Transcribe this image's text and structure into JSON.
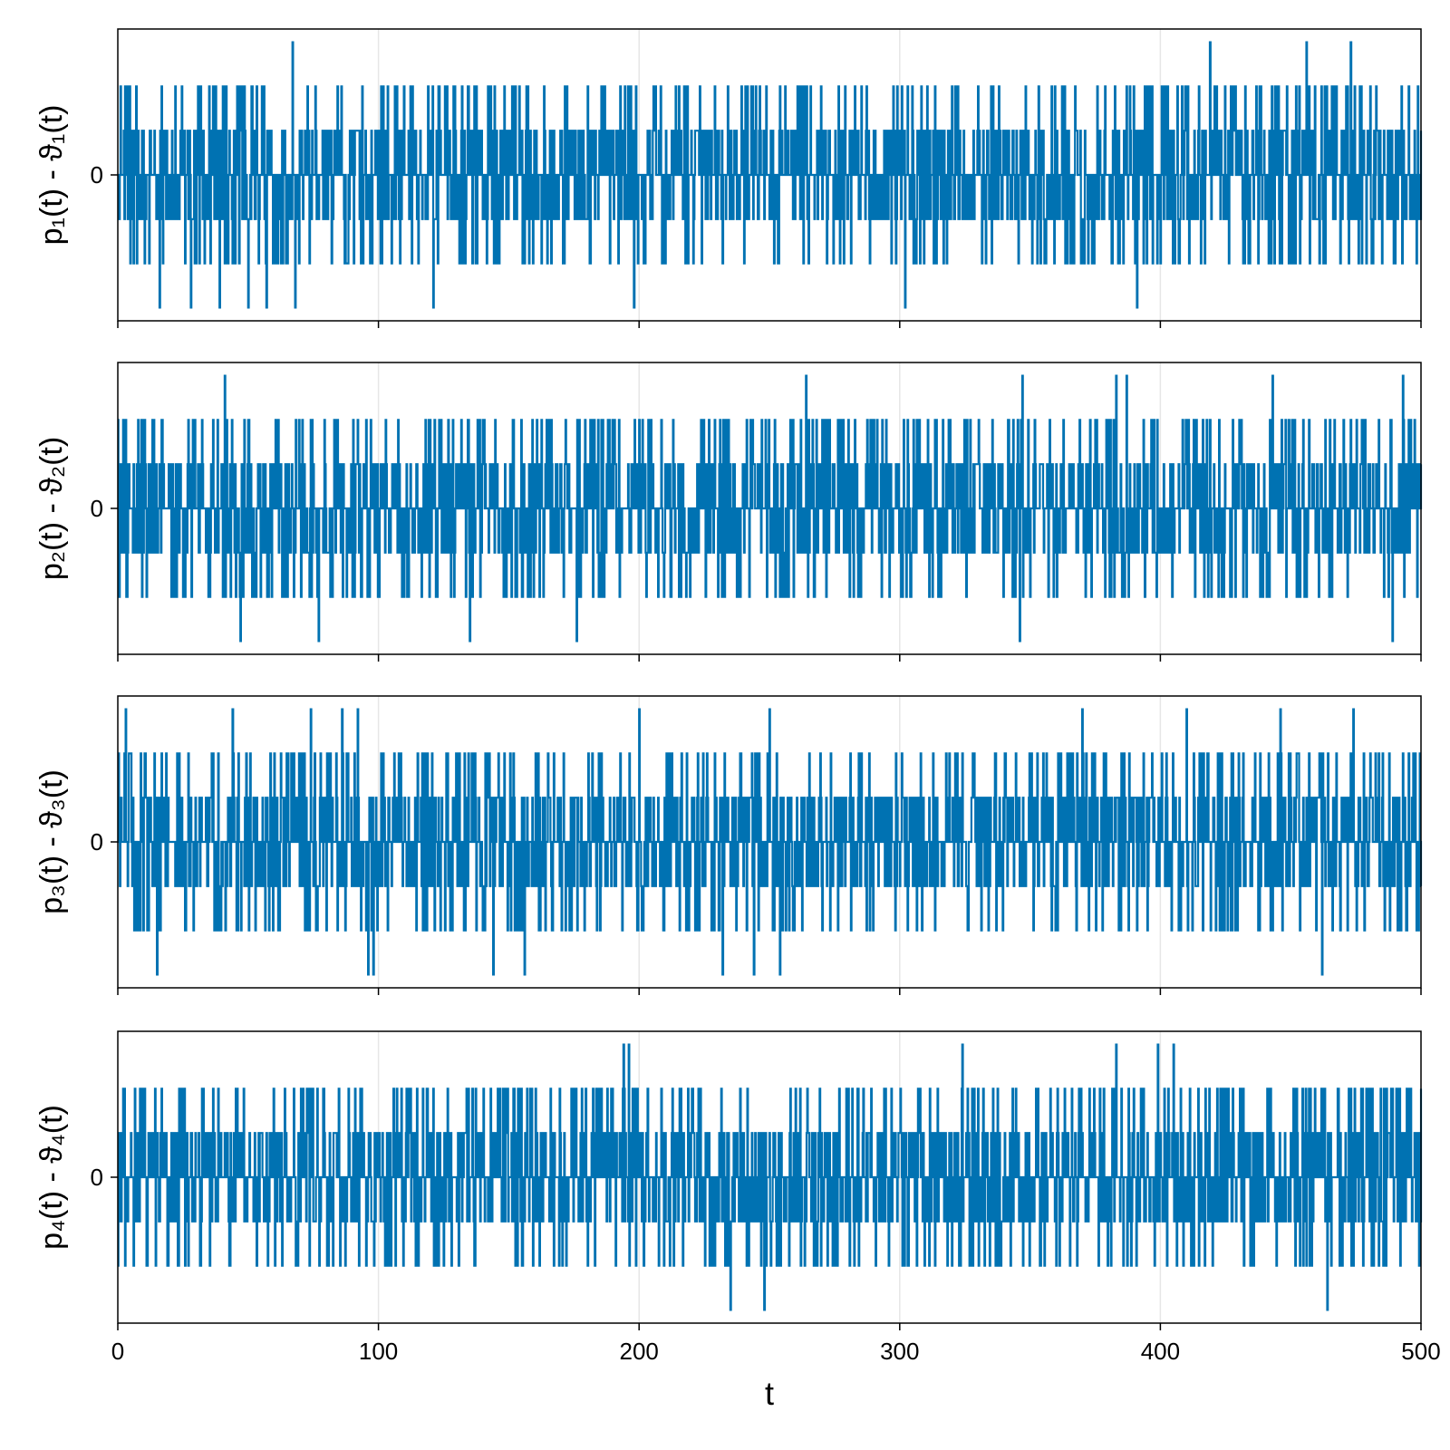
{
  "chart_data": {
    "type": "line",
    "layout": "stacked panels sharing x axis",
    "xlabel": "t",
    "xlim": [
      0,
      500
    ],
    "xticks": [
      0,
      100,
      200,
      300,
      400,
      500
    ],
    "xtick_labels": [
      "0",
      "100",
      "200",
      "300",
      "400",
      "500"
    ],
    "ylim": [
      -3.3,
      3.3
    ],
    "yticks": [
      0
    ],
    "ytick_labels": [
      "0"
    ],
    "grid": true,
    "line_color": "#0072b2",
    "note": "Each panel is an integer-valued step series over t = 0..500 (levels -3..3), dense noise centered at 0.",
    "panels": [
      {
        "ylabel": "p₁(t) - ϑ₁(t)",
        "extremes": {
          "max": [
            [
              67,
              3
            ],
            [
              419,
              3
            ],
            [
              456,
              3
            ],
            [
              473,
              3
            ]
          ],
          "min": [
            [
              16,
              -3
            ],
            [
              28,
              -3
            ],
            [
              39,
              -3
            ],
            [
              50,
              -3
            ],
            [
              57,
              -3
            ],
            [
              68,
              -3
            ],
            [
              121,
              -3
            ],
            [
              198,
              -3
            ],
            [
              302,
              -3
            ],
            [
              391,
              -3
            ]
          ]
        }
      },
      {
        "ylabel": "p₂(t) - ϑ₂(t)",
        "extremes": {
          "max": [
            [
              41,
              3
            ],
            [
              264,
              3
            ],
            [
              347,
              3
            ],
            [
              383,
              3
            ],
            [
              387,
              3
            ],
            [
              443,
              3
            ],
            [
              493,
              3
            ]
          ],
          "min": [
            [
              47,
              -3
            ],
            [
              77,
              -3
            ],
            [
              135,
              -3
            ],
            [
              176,
              -3
            ],
            [
              346,
              -3
            ],
            [
              489,
              -3
            ]
          ]
        }
      },
      {
        "ylabel": "p₃(t) - ϑ₃(t)",
        "extremes": {
          "max": [
            [
              3,
              3
            ],
            [
              44,
              3
            ],
            [
              74,
              3
            ],
            [
              86,
              3
            ],
            [
              92,
              3
            ],
            [
              200,
              3
            ],
            [
              250,
              3
            ],
            [
              370,
              3
            ],
            [
              410,
              3
            ],
            [
              446,
              3
            ],
            [
              474,
              3
            ]
          ],
          "min": [
            [
              15,
              -3
            ],
            [
              96,
              -3
            ],
            [
              98,
              -3
            ],
            [
              144,
              -3
            ],
            [
              156,
              -3
            ],
            [
              232,
              -3
            ],
            [
              244,
              -3
            ],
            [
              254,
              -3
            ],
            [
              462,
              -3
            ]
          ]
        }
      },
      {
        "ylabel": "p₄(t) - ϑ₄(t)",
        "extremes": {
          "max": [
            [
              194,
              3
            ],
            [
              196,
              3
            ],
            [
              324,
              3
            ],
            [
              383,
              3
            ],
            [
              399,
              3
            ],
            [
              405,
              3
            ]
          ],
          "min": [
            [
              235,
              -3
            ],
            [
              248,
              -3
            ],
            [
              464,
              -3
            ]
          ]
        }
      }
    ]
  }
}
